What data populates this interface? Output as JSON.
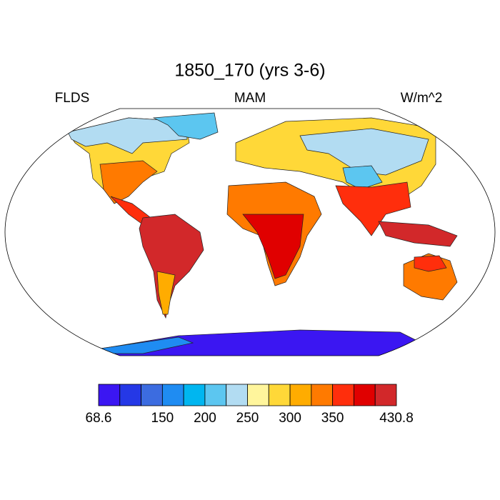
{
  "title": "1850_170 (yrs 3-6)",
  "left_label": "FLDS",
  "center_label": "MAM",
  "right_label": "W/m^2",
  "colorbar": {
    "colors": [
      "#3b16f2",
      "#2538e6",
      "#3c6ce0",
      "#1f8cf2",
      "#00b6f0",
      "#5cc6f0",
      "#b2dcf2",
      "#fff59c",
      "#ffd838",
      "#ffac00",
      "#ff7a00",
      "#ff2e0c",
      "#e00000",
      "#d2282a"
    ],
    "boundaries": [
      68.6,
      100,
      125,
      150,
      175,
      200,
      225,
      250,
      275,
      300,
      325,
      350,
      375,
      400,
      430.8
    ],
    "ticks": [
      68.6,
      150,
      200,
      250,
      300,
      350,
      430.8
    ]
  }
}
